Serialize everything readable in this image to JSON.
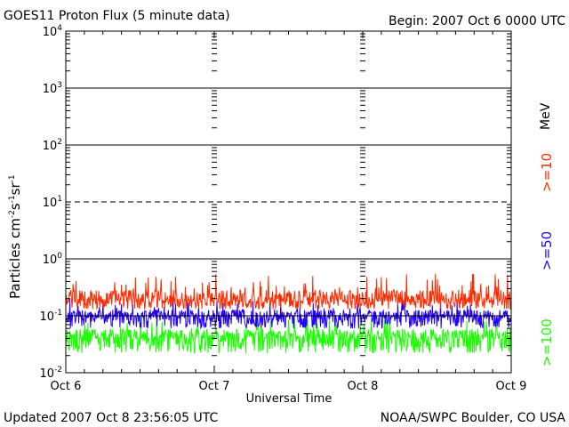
{
  "header": {
    "title": "GOES11 Proton Flux (5 minute data)",
    "begin": "Begin: 2007 Oct 6 0000 UTC"
  },
  "footer": {
    "updated": "Updated 2007 Oct  8 23:56:05 UTC",
    "credit": "NOAA/SWPC Boulder, CO USA"
  },
  "legend": {
    "unit": "MeV",
    "entries": [
      {
        "label": ">=10",
        "color": "#ff2a00"
      },
      {
        "label": ">=50",
        "color": "#2200ff"
      },
      {
        "label": ">=100",
        "color": "#1aff00"
      }
    ]
  },
  "chart_data": {
    "type": "line",
    "title": "GOES11 Proton Flux (5 minute data)",
    "xlabel": "Universal Time",
    "ylabel": "Particles cm-2 s-1 sr-1",
    "y_scale": "log",
    "ylim": [
      0.01,
      10000
    ],
    "y_ticks": [
      {
        "value": 0.01,
        "base": "10",
        "exp": "-2"
      },
      {
        "value": 0.1,
        "base": "10",
        "exp": "-1"
      },
      {
        "value": 1,
        "base": "10",
        "exp": "0"
      },
      {
        "value": 10,
        "base": "10",
        "exp": "1"
      },
      {
        "value": 100,
        "base": "10",
        "exp": "2"
      },
      {
        "value": 1000,
        "base": "10",
        "exp": "3"
      },
      {
        "value": 10000,
        "base": "10",
        "exp": "4"
      }
    ],
    "x_ticks": [
      "Oct 6",
      "Oct 7",
      "Oct 8",
      "Oct 9"
    ],
    "xlim": [
      "2007-10-06 00:00",
      "2007-10-09 00:00"
    ],
    "grid": true,
    "dashed_level": 10,
    "series": [
      {
        "name": ">=10 MeV",
        "color": "#ff2a00",
        "min": 0.13,
        "max": 0.55,
        "typical": 0.2
      },
      {
        "name": ">=50 MeV",
        "color": "#2200ff",
        "min": 0.06,
        "max": 0.2,
        "typical": 0.1
      },
      {
        "name": ">=100 MeV",
        "color": "#1aff00",
        "min": 0.022,
        "max": 0.1,
        "typical": 0.045
      }
    ]
  }
}
